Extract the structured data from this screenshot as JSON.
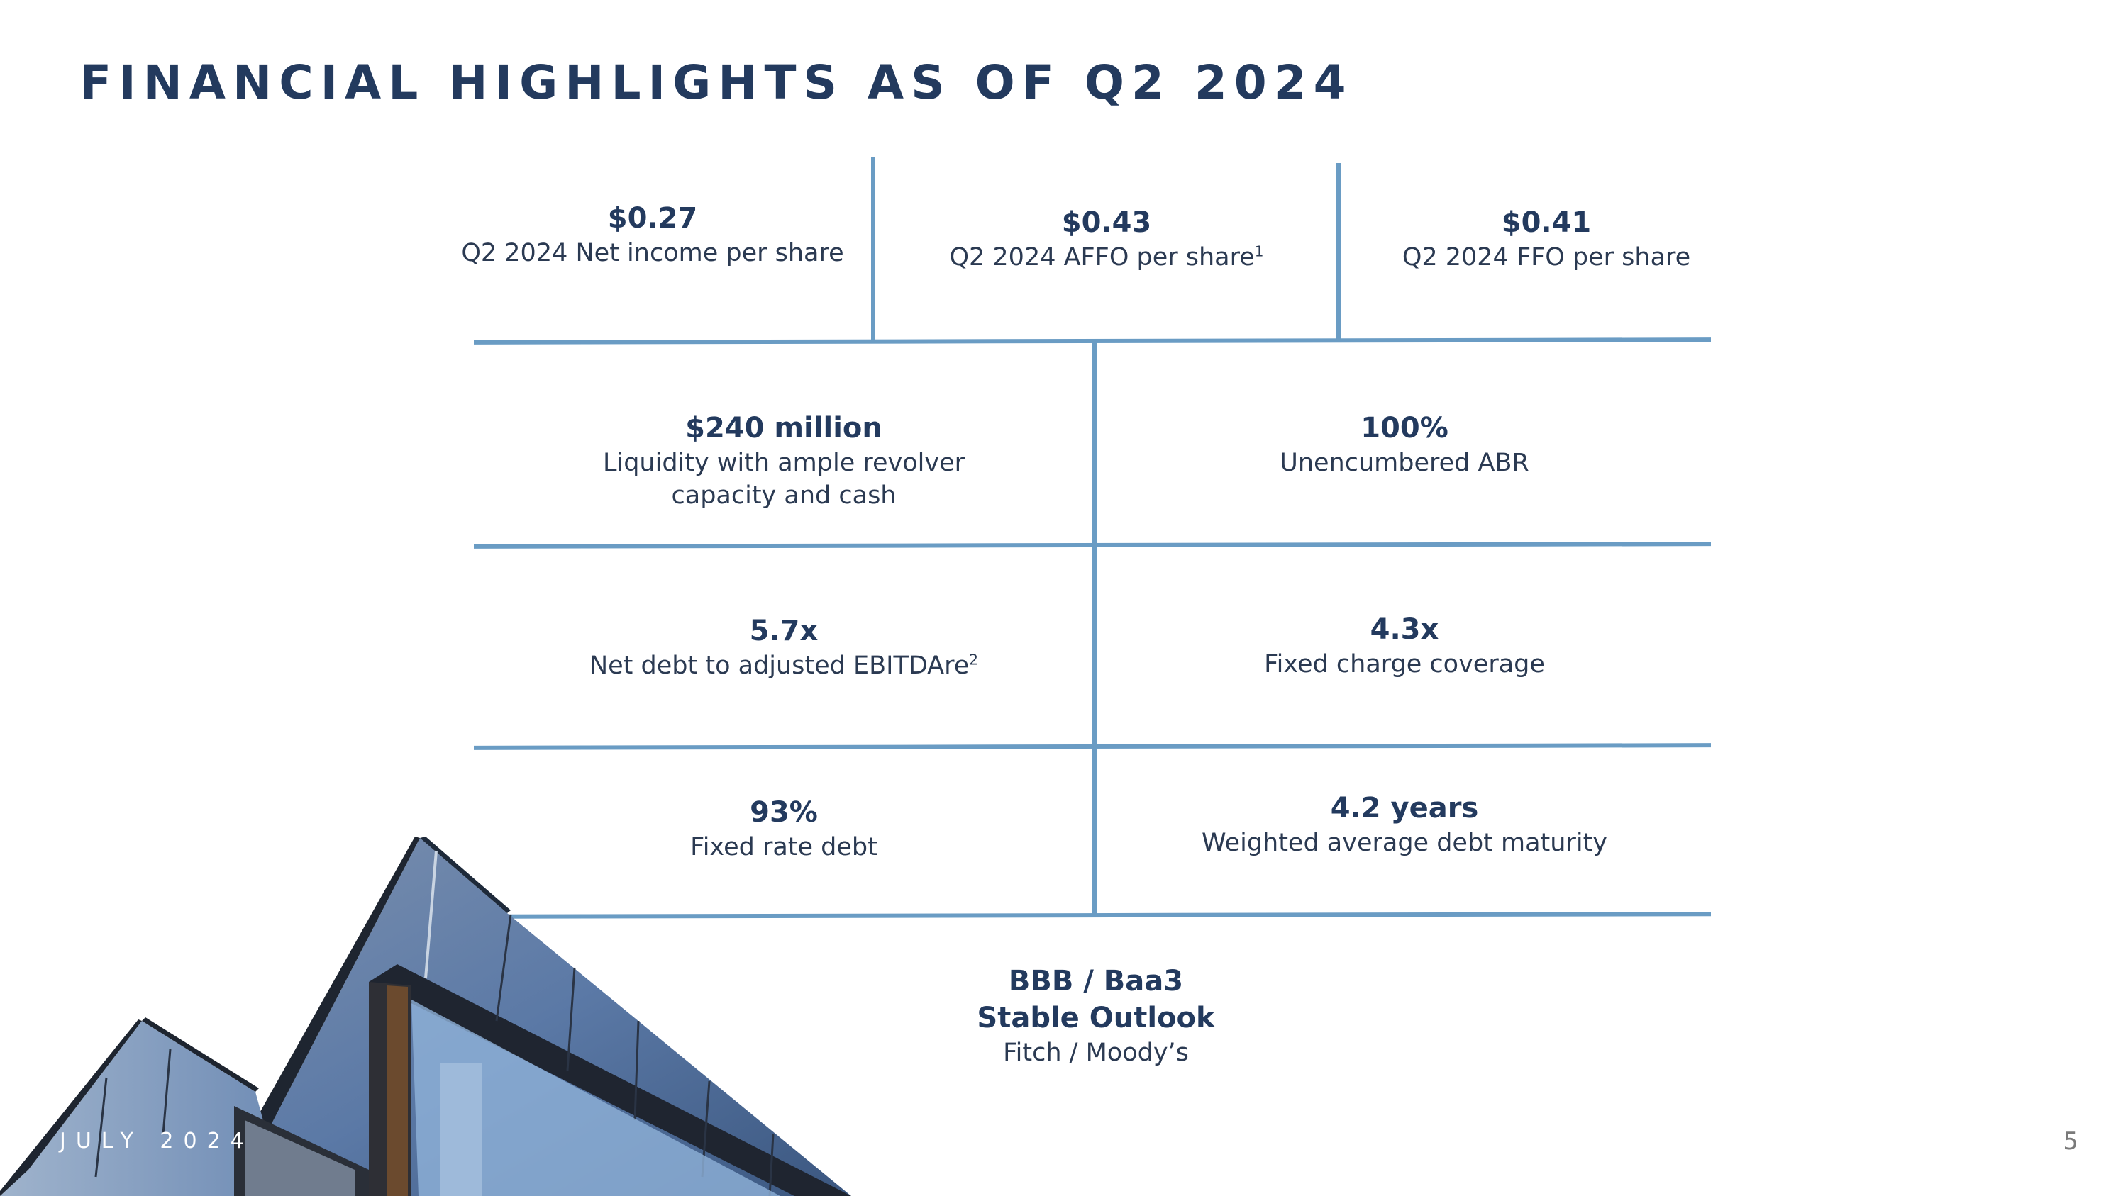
{
  "title": "FINANCIAL HIGHLIGHTS AS OF Q2 2024",
  "metrics": {
    "net_income": {
      "value": "$0.27",
      "label": "Q2 2024 Net income per share"
    },
    "affo": {
      "value": "$0.43",
      "label": "Q2 2024 AFFO per share",
      "footnote": "1"
    },
    "ffo": {
      "value": "$0.41",
      "label": "Q2 2024 FFO per share"
    },
    "liquidity": {
      "value": "$240 million",
      "label_line1": "Liquidity with ample revolver",
      "label_line2": "capacity and cash"
    },
    "unencumbered": {
      "value": "100%",
      "label": "Unencumbered ABR"
    },
    "net_debt": {
      "value": "5.7x",
      "label": "Net debt to adjusted EBITDAre",
      "footnote": "2"
    },
    "fixed_charge": {
      "value": "4.3x",
      "label": "Fixed charge coverage"
    },
    "fixed_rate": {
      "value": "93%",
      "label": "Fixed rate debt"
    },
    "maturity": {
      "value": "4.2 years",
      "label": "Weighted average debt maturity"
    },
    "rating": {
      "value_line1": "BBB / Baa3",
      "value_line2": "Stable Outlook",
      "label": "Fitch / Moody’s"
    }
  },
  "footer": {
    "date": "JULY 2024",
    "page_number": "5"
  },
  "colors": {
    "title": "#233a5e",
    "divider": "#6a9cc4",
    "text": "#2b3a52"
  }
}
